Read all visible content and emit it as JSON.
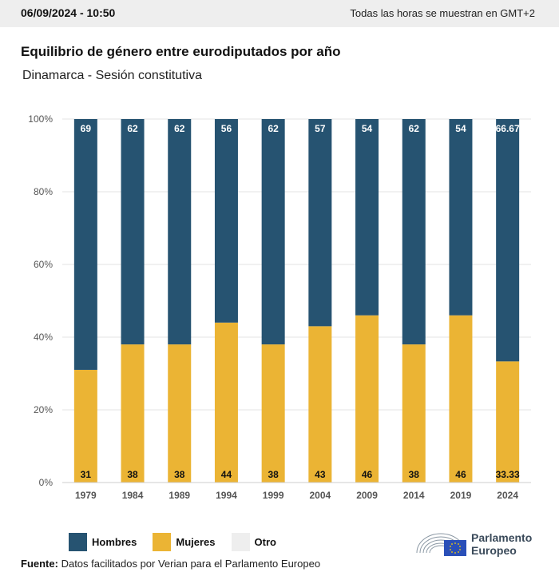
{
  "header": {
    "date": "06/09/2024 - 10:50",
    "timezone_note": "Todas las horas se muestran en GMT+2"
  },
  "chart_data": {
    "type": "bar",
    "stacked": true,
    "title": "Equilibrio de género entre eurodiputados por año",
    "subtitle": "Dinamarca - Sesión constitutiva",
    "categories": [
      "1979",
      "1984",
      "1989",
      "1994",
      "1999",
      "2004",
      "2009",
      "2014",
      "2019",
      "2024"
    ],
    "series": [
      {
        "name": "Mujeres",
        "color": "#ebb434",
        "values": [
          31,
          38,
          38,
          44,
          38,
          43,
          46,
          38,
          46,
          33.33
        ]
      },
      {
        "name": "Hombres",
        "color": "#265371",
        "values": [
          69,
          62,
          62,
          56,
          62,
          57,
          54,
          62,
          54,
          66.67
        ]
      },
      {
        "name": "Otro",
        "color": "#eeeeee",
        "values": [
          0,
          0,
          0,
          0,
          0,
          0,
          0,
          0,
          0,
          0
        ]
      }
    ],
    "yticks": [
      "0%",
      "20%",
      "40%",
      "60%",
      "80%",
      "100%"
    ],
    "ylim": [
      0,
      100
    ],
    "grid": true,
    "legend_position": "bottom-left"
  },
  "legend": [
    {
      "label": "Hombres",
      "color": "#265371"
    },
    {
      "label": "Mujeres",
      "color": "#ebb434"
    },
    {
      "label": "Otro",
      "color": "#eeeeee"
    }
  ],
  "source": {
    "label": "Fuente:",
    "text": "Datos facilitados por Verian para el Parlamento Europeo"
  },
  "logo": {
    "line1": "Parlamento",
    "line2": "Europeo"
  }
}
